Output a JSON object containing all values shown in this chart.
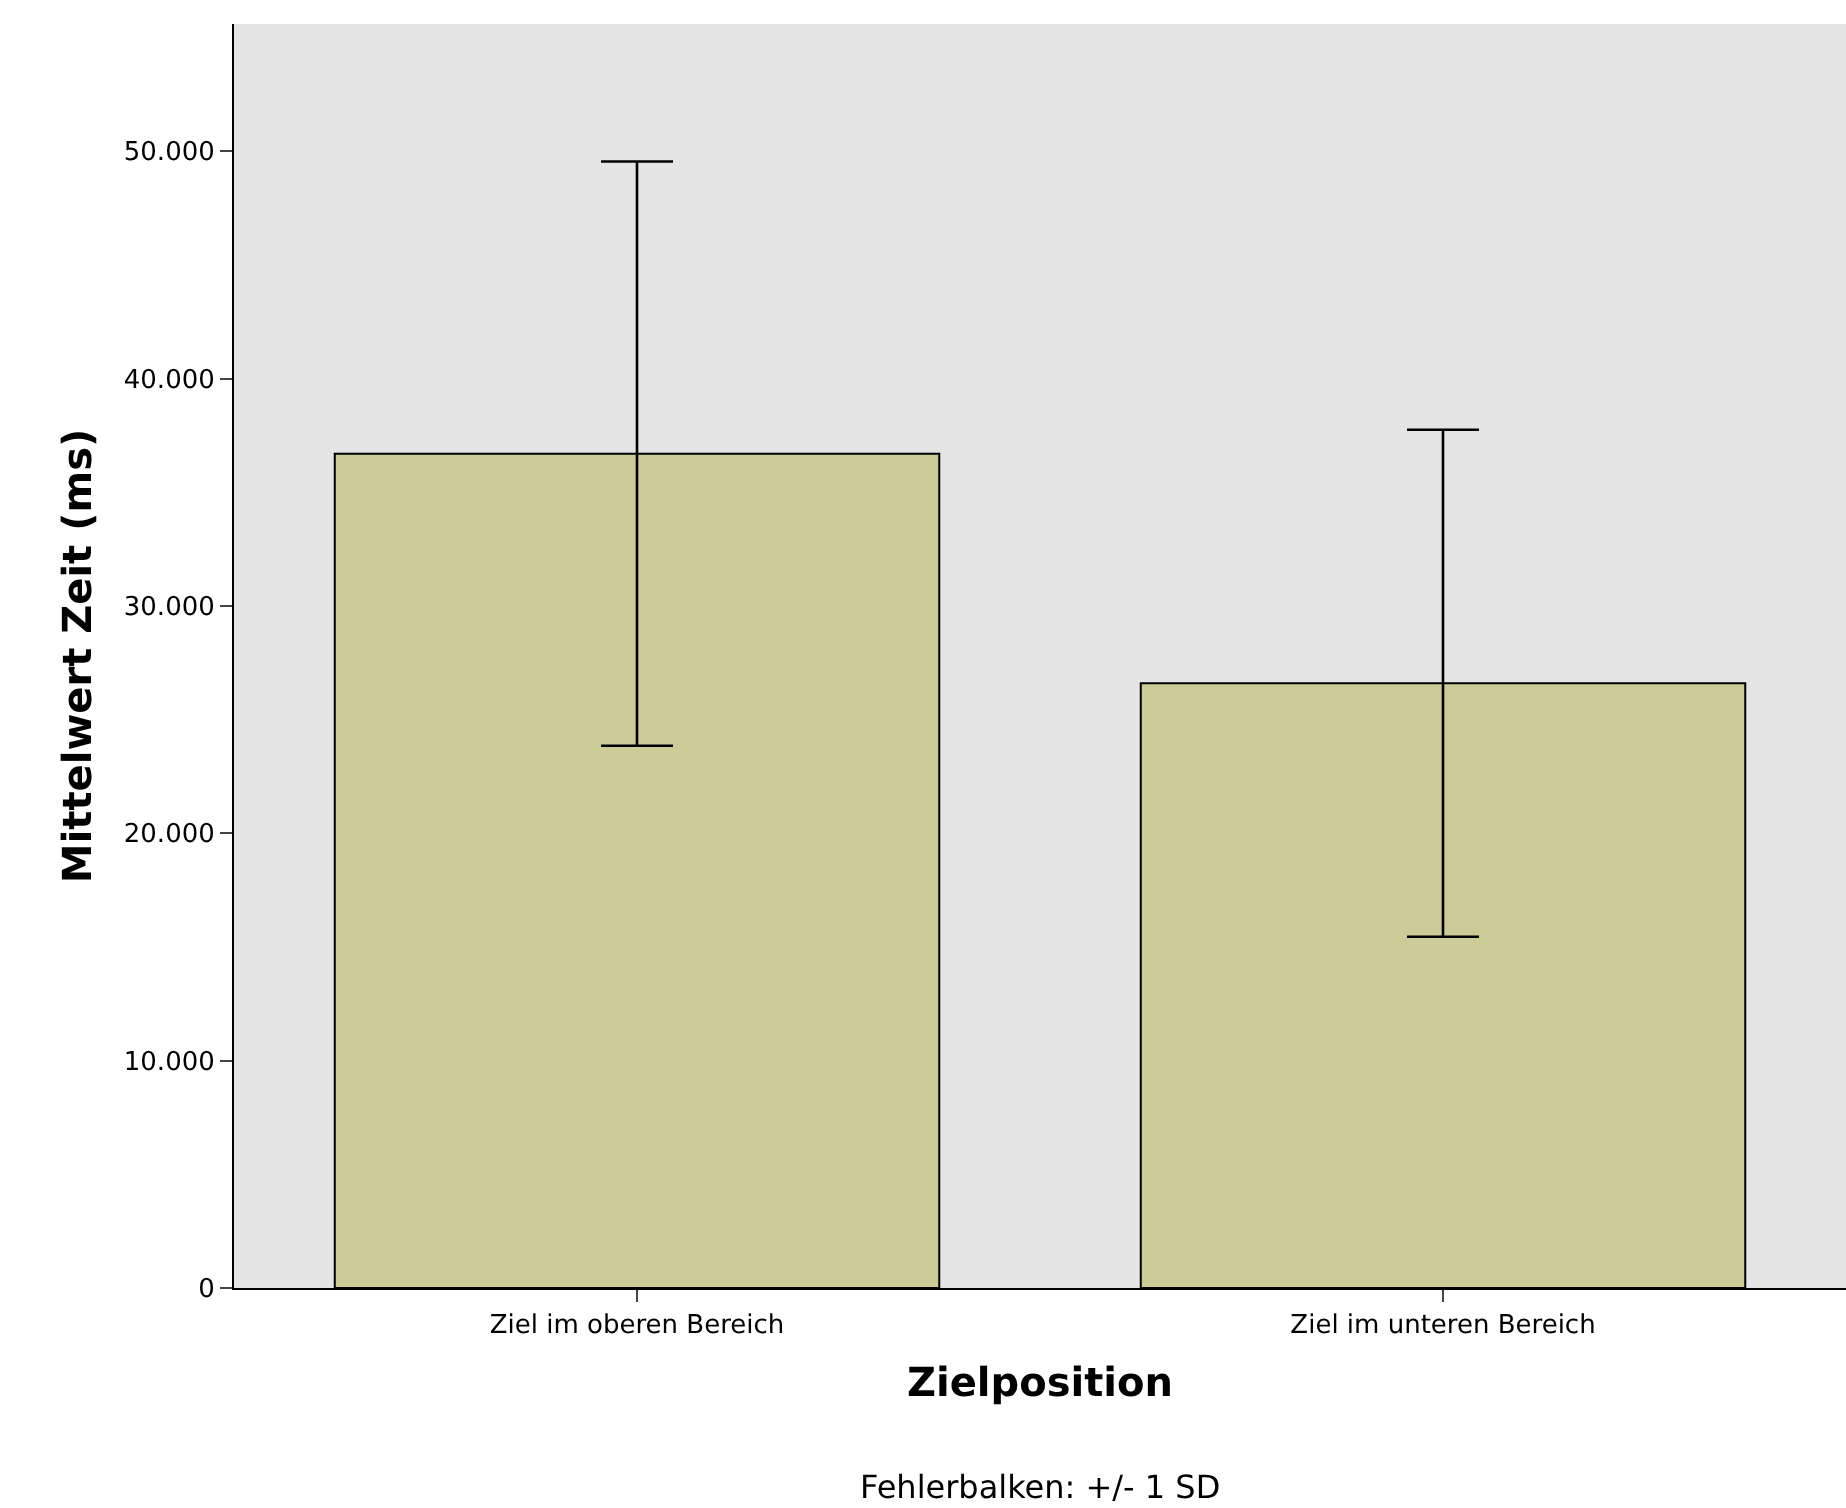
{
  "chart_data": {
    "type": "bar",
    "xlabel": "Zielposition",
    "ylabel": "Mittelwert Zeit (ms)",
    "categories": [
      "Ziel im oberen Bereich",
      "Ziel im unteren Bereich"
    ],
    "values": [
      36700,
      26600
    ],
    "errors": [
      12850,
      11150
    ],
    "color": "#cccc99",
    "ylim": [
      0,
      55600
    ],
    "yticks": [
      {
        "value": 0,
        "label": "0"
      },
      {
        "value": 10000,
        "label": "10.000"
      },
      {
        "value": 20000,
        "label": "20.000"
      },
      {
        "value": 30000,
        "label": "30.000"
      },
      {
        "value": 40000,
        "label": "40.000"
      },
      {
        "value": 50000,
        "label": "50.000"
      }
    ],
    "grid": false,
    "legend": false,
    "annotations": [
      "Fehlerbalken: +/- 1 SD"
    ]
  }
}
